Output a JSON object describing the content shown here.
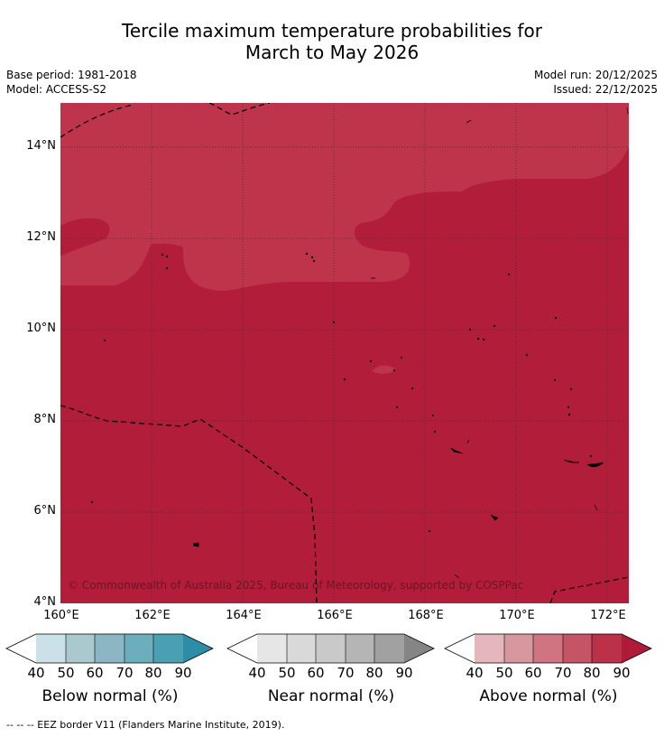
{
  "title": {
    "line1": "Tercile maximum temperature probabilities for",
    "line2": "March to May 2026"
  },
  "meta": {
    "base_period": "Base period: 1981-2018",
    "model": "Model: ACCESS-S2",
    "model_run": "Model run: 20/12/2025",
    "issued": "Issued: 22/12/2025"
  },
  "map": {
    "copyright": "© Commonwealth of Australia 2025, Bureau of Meteorology, supported by COSPPac",
    "colors": {
      "above_80": "#b21e3a",
      "above_70": "#be344b",
      "border": "#000000",
      "grid": "#333333"
    },
    "lat_labels": [
      "14°N",
      "12°N",
      "10°N",
      "8°N",
      "6°N",
      "4°N"
    ],
    "lon_labels": [
      "160°E",
      "162°E",
      "164°E",
      "166°E",
      "168°E",
      "170°E",
      "172°E"
    ]
  },
  "legends": [
    {
      "title": "Below normal (%)",
      "ticks": [
        "40",
        "50",
        "60",
        "70",
        "80",
        "90"
      ],
      "colors": [
        "#ffffff",
        "#c9e1e7",
        "#a9c9cf",
        "#8bb7c4",
        "#6daebe",
        "#4a9fb3",
        "#2b8da6"
      ]
    },
    {
      "title": "Near normal (%)",
      "ticks": [
        "40",
        "50",
        "60",
        "70",
        "80",
        "90"
      ],
      "colors": [
        "#ffffff",
        "#e6e6e6",
        "#d9d9d9",
        "#c9c9c9",
        "#b5b5b5",
        "#a1a1a1",
        "#858585"
      ]
    },
    {
      "title": "Above normal (%)",
      "ticks": [
        "40",
        "50",
        "60",
        "70",
        "80",
        "90"
      ],
      "colors": [
        "#ffffff",
        "#e3b7bd",
        "#d6979f",
        "#cf7480",
        "#c55565",
        "#bb3148",
        "#b01a39"
      ]
    }
  ],
  "footer": "--  --  -- EEZ border V11 (Flanders Marine Institute, 2019)."
}
